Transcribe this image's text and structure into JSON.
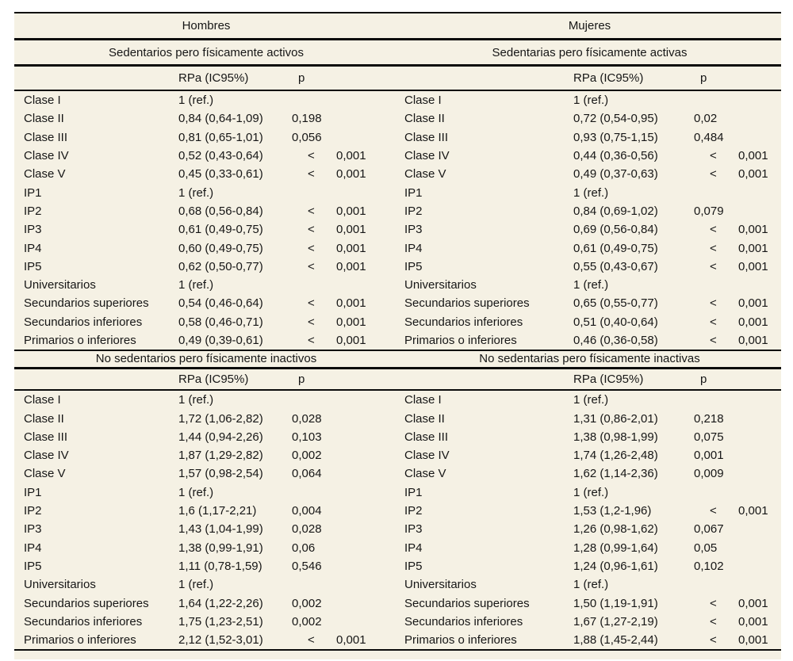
{
  "colors": {
    "paper_bg": "#f5f1e4",
    "page_bg": "#ffffff",
    "ink": "#161616",
    "rule": "#0b0b0b"
  },
  "groups": {
    "left": "Hombres",
    "right": "Mujeres"
  },
  "col_headers": {
    "rpa": "RPa (IC95%)",
    "p": "p",
    "lt_symbol": "<"
  },
  "sections": [
    {
      "left_title": "Sedentarios pero físicamente activos",
      "right_title": "Sedentarias pero físicamente activas",
      "rows": [
        {
          "l": "Clase I",
          "lr": "1 (ref.)",
          "llt": false,
          "lp": "",
          "r": "Clase I",
          "rr": "1 (ref.)",
          "rlt": false,
          "rp": ""
        },
        {
          "l": "Clase II",
          "lr": "0,84 (0,64-1,09)",
          "llt": false,
          "lp": "0,198",
          "r": "Clase II",
          "rr": "0,72 (0,54-0,95)",
          "rlt": false,
          "rp": "0,02"
        },
        {
          "l": "Clase III",
          "lr": "0,81 (0,65-1,01)",
          "llt": false,
          "lp": "0,056",
          "r": "Clase III",
          "rr": "0,93 (0,75-1,15)",
          "rlt": false,
          "rp": "0,484"
        },
        {
          "l": "Clase IV",
          "lr": "0,52 (0,43-0,64)",
          "llt": true,
          "lp": "0,001",
          "r": "Clase IV",
          "rr": "0,44 (0,36-0,56)",
          "rlt": true,
          "rp": "0,001"
        },
        {
          "l": "Clase V",
          "lr": "0,45 (0,33-0,61)",
          "llt": true,
          "lp": "0,001",
          "r": "Clase V",
          "rr": "0,49 (0,37-0,63)",
          "rlt": true,
          "rp": "0,001"
        },
        {
          "l": "IP1",
          "lr": "1 (ref.)",
          "llt": false,
          "lp": "",
          "r": "IP1",
          "rr": "1 (ref.)",
          "rlt": false,
          "rp": ""
        },
        {
          "l": "IP2",
          "lr": "0,68 (0,56-0,84)",
          "llt": true,
          "lp": "0,001",
          "r": "IP2",
          "rr": "0,84 (0,69-1,02)",
          "rlt": false,
          "rp": "0,079"
        },
        {
          "l": "IP3",
          "lr": "0,61 (0,49-0,75)",
          "llt": true,
          "lp": "0,001",
          "r": "IP3",
          "rr": "0,69 (0,56-0,84)",
          "rlt": true,
          "rp": "0,001"
        },
        {
          "l": "IP4",
          "lr": "0,60 (0,49-0,75)",
          "llt": true,
          "lp": "0,001",
          "r": "IP4",
          "rr": "0,61 (0,49-0,75)",
          "rlt": true,
          "rp": "0,001"
        },
        {
          "l": "IP5",
          "lr": "0,62 (0,50-0,77)",
          "llt": true,
          "lp": "0,001",
          "r": "IP5",
          "rr": "0,55 (0,43-0,67)",
          "rlt": true,
          "rp": "0,001"
        },
        {
          "l": "Universitarios",
          "lr": "1 (ref.)",
          "llt": false,
          "lp": "",
          "r": "Universitarios",
          "rr": "1 (ref.)",
          "rlt": false,
          "rp": ""
        },
        {
          "l": "Secundarios superiores",
          "lr": "0,54 (0,46-0,64)",
          "llt": true,
          "lp": "0,001",
          "r": "Secundarios superiores",
          "rr": "0,65 (0,55-0,77)",
          "rlt": true,
          "rp": "0,001"
        },
        {
          "l": "Secundarios inferiores",
          "lr": "0,58 (0,46-0,71)",
          "llt": true,
          "lp": "0,001",
          "r": "Secundarios inferiores",
          "rr": "0,51 (0,40-0,64)",
          "rlt": true,
          "rp": "0,001"
        },
        {
          "l": "Primarios o inferiores",
          "lr": "0,49 (0,39-0,61)",
          "llt": true,
          "lp": "0,001",
          "r": "Primarios o inferiores",
          "rr": "0,46 (0,36-0,58)",
          "rlt": true,
          "rp": "0,001"
        }
      ]
    },
    {
      "left_title": "No sedentarios pero físicamente inactivos",
      "right_title": "No sedentarias pero físicamente inactivas",
      "rows": [
        {
          "l": "Clase I",
          "lr": "1 (ref.)",
          "llt": false,
          "lp": "",
          "r": "Clase I",
          "rr": "1 (ref.)",
          "rlt": false,
          "rp": ""
        },
        {
          "l": "Clase II",
          "lr": "1,72 (1,06-2,82)",
          "llt": false,
          "lp": "0,028",
          "r": "Clase II",
          "rr": "1,31 (0,86-2,01)",
          "rlt": false,
          "rp": "0,218"
        },
        {
          "l": "Clase III",
          "lr": "1,44 (0,94-2,26)",
          "llt": false,
          "lp": "0,103",
          "r": "Clase III",
          "rr": "1,38 (0,98-1,99)",
          "rlt": false,
          "rp": "0,075"
        },
        {
          "l": "Clase IV",
          "lr": "1,87 (1,29-2,82)",
          "llt": false,
          "lp": "0,002",
          "r": "Clase IV",
          "rr": "1,74 (1,26-2,48)",
          "rlt": false,
          "rp": "0,001"
        },
        {
          "l": "Clase V",
          "lr": "1,57 (0,98-2,54)",
          "llt": false,
          "lp": "0,064",
          "r": "Clase V",
          "rr": "1,62 (1,14-2,36)",
          "rlt": false,
          "rp": "0,009"
        },
        {
          "l": "IP1",
          "lr": "1 (ref.)",
          "llt": false,
          "lp": "",
          "r": "IP1",
          "rr": "1 (ref.)",
          "rlt": false,
          "rp": ""
        },
        {
          "l": "IP2",
          "lr": "1,6 (1,17-2,21)",
          "llt": false,
          "lp": "0,004",
          "r": "IP2",
          "rr": "1,53 (1,2-1,96)",
          "rlt": true,
          "rp": "0,001"
        },
        {
          "l": "IP3",
          "lr": "1,43 (1,04-1,99)",
          "llt": false,
          "lp": "0,028",
          "r": "IP3",
          "rr": "1,26 (0,98-1,62)",
          "rlt": false,
          "rp": "0,067"
        },
        {
          "l": "IP4",
          "lr": "1,38 (0,99-1,91)",
          "llt": false,
          "lp": "0,06",
          "r": "IP4",
          "rr": "1,28 (0,99-1,64)",
          "rlt": false,
          "rp": "0,05"
        },
        {
          "l": "IP5",
          "lr": "1,11 (0,78-1,59)",
          "llt": false,
          "lp": "0,546",
          "r": "IP5",
          "rr": "1,24 (0,96-1,61)",
          "rlt": false,
          "rp": "0,102"
        },
        {
          "l": "Universitarios",
          "lr": "1 (ref.)",
          "llt": false,
          "lp": "",
          "r": "Universitarios",
          "rr": "1 (ref.)",
          "rlt": false,
          "rp": ""
        },
        {
          "l": "Secundarios superiores",
          "lr": "1,64 (1,22-2,26)",
          "llt": false,
          "lp": "0,002",
          "r": "Secundarios superiores",
          "rr": "1,50 (1,19-1,91)",
          "rlt": true,
          "rp": "0,001"
        },
        {
          "l": "Secundarios inferiores",
          "lr": "1,75 (1,23-2,51)",
          "llt": false,
          "lp": "0,002",
          "r": "Secundarios inferiores",
          "rr": "1,67 (1,27-2,19)",
          "rlt": true,
          "rp": "0,001"
        },
        {
          "l": "Primarios o inferiores",
          "lr": "2,12 (1,52-3,01)",
          "llt": true,
          "lp": "0,001",
          "r": "Primarios o inferiores",
          "rr": "1,88 (1,45-2,44)",
          "rlt": true,
          "rp": "0,001"
        }
      ]
    }
  ]
}
